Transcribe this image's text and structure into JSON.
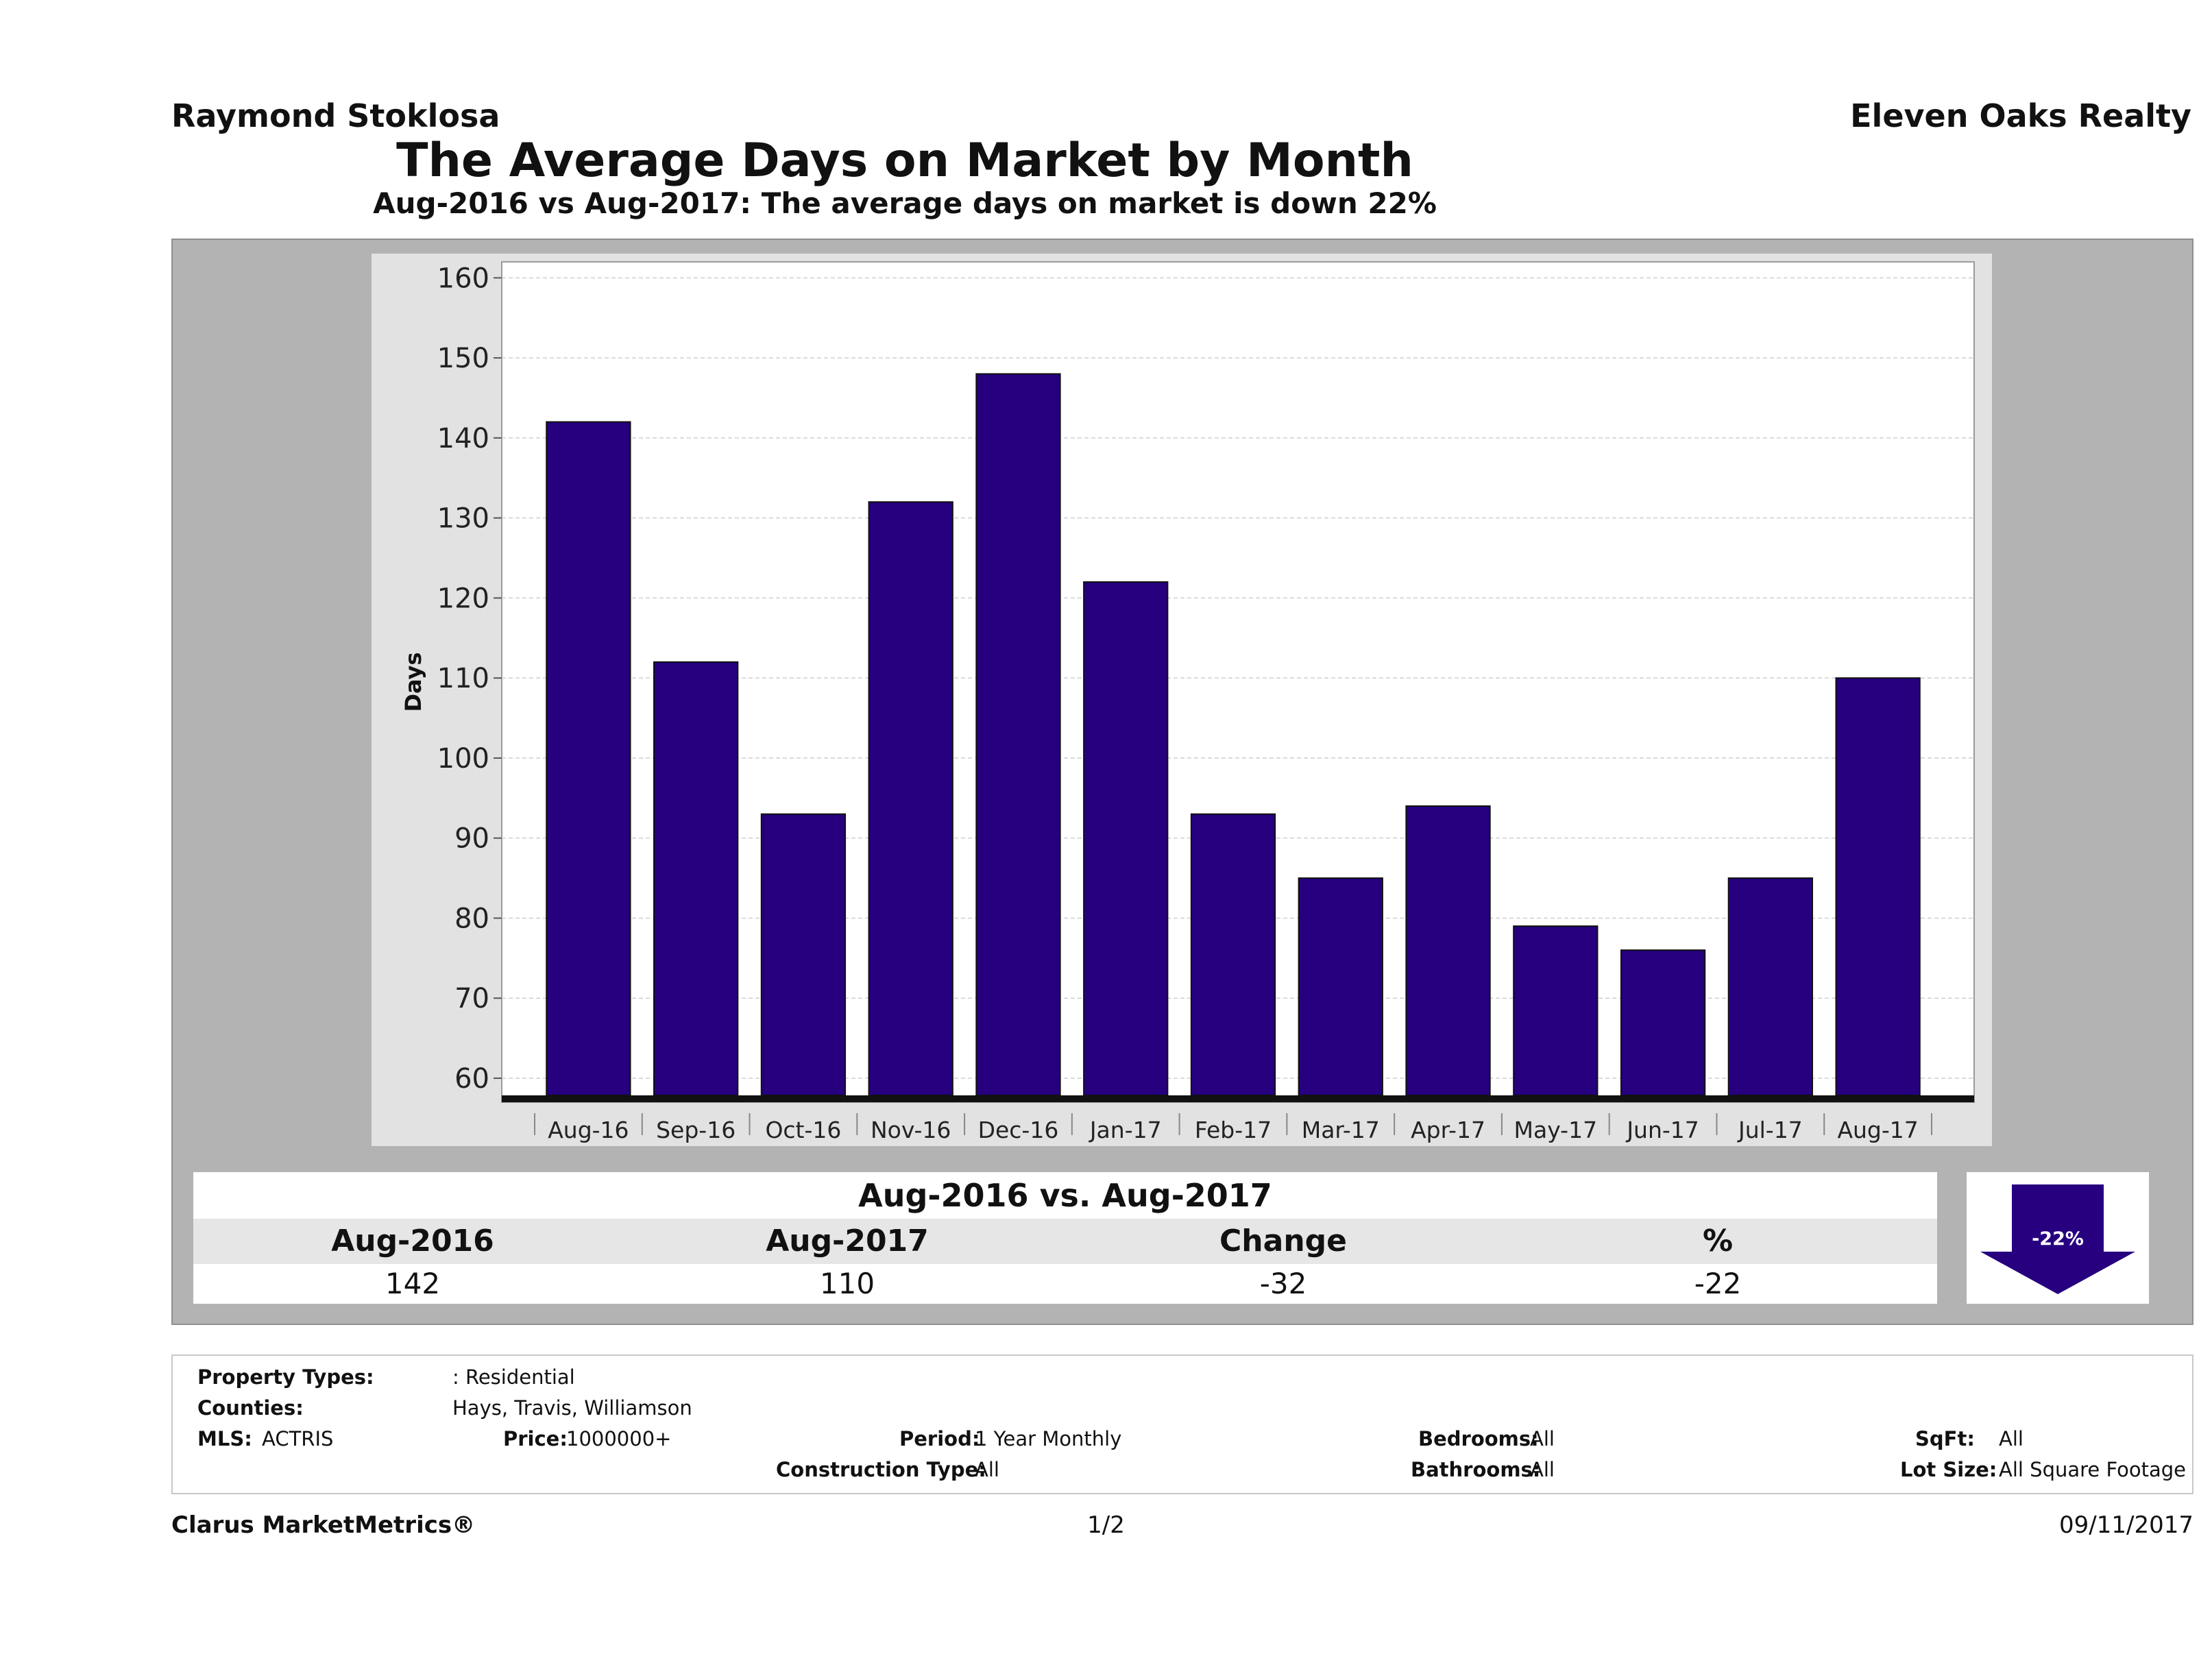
{
  "header": {
    "agent": "Raymond Stoklosa",
    "company": "Eleven Oaks Realty",
    "title": "The Average Days on Market by Month",
    "subtitle": "Aug-2016 vs Aug-2017: The average days on market is down 22%"
  },
  "colors": {
    "bar": "#26007f",
    "panel": "#b3b3b3",
    "plot_bg": "#ffffff",
    "chart_bg": "#e2e2e2"
  },
  "chart_data": {
    "type": "bar",
    "ylabel": "Days",
    "xlabel": "",
    "categories": [
      "Aug-16",
      "Sep-16",
      "Oct-16",
      "Nov-16",
      "Dec-16",
      "Jan-17",
      "Feb-17",
      "Mar-17",
      "Apr-17",
      "May-17",
      "Jun-17",
      "Jul-17",
      "Aug-17"
    ],
    "values": [
      142,
      112,
      93,
      132,
      148,
      122,
      93,
      85,
      94,
      79,
      76,
      85,
      110
    ],
    "ylim": [
      57,
      162
    ],
    "yticks": [
      60,
      70,
      80,
      90,
      100,
      110,
      120,
      130,
      140,
      150,
      160
    ],
    "grid": true,
    "legend": "none"
  },
  "summary": {
    "title": "Aug-2016 vs. Aug-2017",
    "headers": [
      "Aug-2016",
      "Aug-2017",
      "Change",
      "%"
    ],
    "values": [
      "142",
      "110",
      "-32",
      "-22"
    ],
    "badge": "-22%",
    "badge_icon": "down-arrow-icon"
  },
  "filters": {
    "property_types_label": "Property Types:",
    "property_types": ": Residential",
    "counties_label": "Counties:",
    "counties": "Hays, Travis, Williamson",
    "mls_label": "MLS:",
    "mls": "ACTRIS",
    "price_label": "Price:",
    "price": "1000000+",
    "period_label": "Period:",
    "period": "1 Year Monthly",
    "construction_label": "Construction Type:",
    "construction": "All",
    "bedrooms_label": "Bedrooms:",
    "bedrooms": "All",
    "bathrooms_label": "Bathrooms:",
    "bathrooms": "All",
    "sqft_label": "SqFt:",
    "sqft": "All",
    "lot_size_label": "Lot Size:",
    "lot_size": "All Square Footage"
  },
  "footer": {
    "brand": "Clarus MarketMetrics®",
    "page": "1/2",
    "date": "09/11/2017"
  }
}
